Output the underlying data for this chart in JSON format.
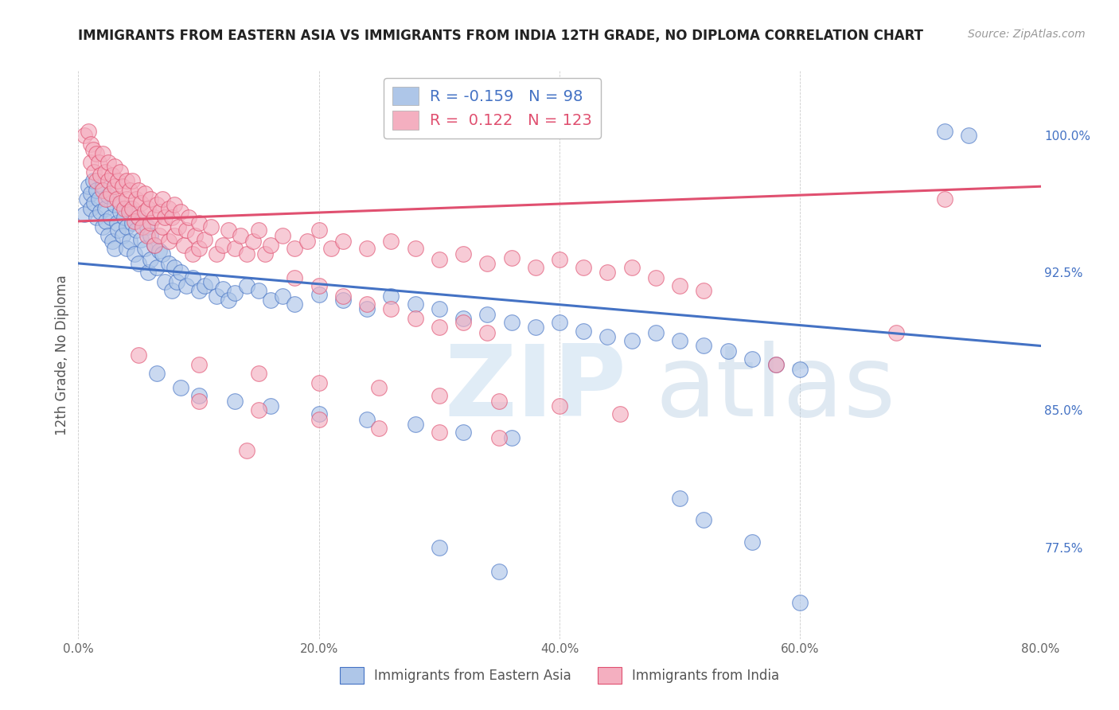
{
  "title": "IMMIGRANTS FROM EASTERN ASIA VS IMMIGRANTS FROM INDIA 12TH GRADE, NO DIPLOMA CORRELATION CHART",
  "source": "Source: ZipAtlas.com",
  "xlabel_ticks": [
    "0.0%",
    "20.0%",
    "40.0%",
    "60.0%",
    "80.0%"
  ],
  "xlabel_tick_vals": [
    0.0,
    0.2,
    0.4,
    0.6,
    0.8
  ],
  "ylabel_ticks": [
    "77.5%",
    "85.0%",
    "92.5%",
    "100.0%"
  ],
  "ylabel_tick_vals": [
    0.775,
    0.85,
    0.925,
    1.0
  ],
  "xlim": [
    0.0,
    0.8
  ],
  "ylim": [
    0.725,
    1.035
  ],
  "blue_R": -0.159,
  "blue_N": 98,
  "pink_R": 0.122,
  "pink_N": 123,
  "blue_color": "#aec6e8",
  "pink_color": "#f4afc0",
  "blue_line_color": "#4472c4",
  "pink_line_color": "#e05070",
  "ylabel": "12th Grade, No Diploma",
  "legend_label_blue": "Immigrants from Eastern Asia",
  "legend_label_pink": "Immigrants from India",
  "watermark_zip": "ZIP",
  "watermark_atlas": "atlas",
  "blue_scatter": [
    [
      0.005,
      0.957
    ],
    [
      0.007,
      0.965
    ],
    [
      0.008,
      0.972
    ],
    [
      0.01,
      0.968
    ],
    [
      0.01,
      0.96
    ],
    [
      0.012,
      0.975
    ],
    [
      0.013,
      0.963
    ],
    [
      0.015,
      0.97
    ],
    [
      0.015,
      0.955
    ],
    [
      0.017,
      0.965
    ],
    [
      0.018,
      0.958
    ],
    [
      0.02,
      0.972
    ],
    [
      0.02,
      0.95
    ],
    [
      0.022,
      0.96
    ],
    [
      0.023,
      0.953
    ],
    [
      0.025,
      0.967
    ],
    [
      0.025,
      0.945
    ],
    [
      0.027,
      0.955
    ],
    [
      0.028,
      0.942
    ],
    [
      0.03,
      0.962
    ],
    [
      0.03,
      0.938
    ],
    [
      0.032,
      0.952
    ],
    [
      0.033,
      0.948
    ],
    [
      0.035,
      0.958
    ],
    [
      0.037,
      0.945
    ],
    [
      0.038,
      0.955
    ],
    [
      0.04,
      0.95
    ],
    [
      0.04,
      0.938
    ],
    [
      0.042,
      0.96
    ],
    [
      0.043,
      0.942
    ],
    [
      0.045,
      0.952
    ],
    [
      0.047,
      0.935
    ],
    [
      0.048,
      0.948
    ],
    [
      0.05,
      0.955
    ],
    [
      0.05,
      0.93
    ],
    [
      0.052,
      0.943
    ],
    [
      0.055,
      0.938
    ],
    [
      0.057,
      0.95
    ],
    [
      0.058,
      0.925
    ],
    [
      0.06,
      0.945
    ],
    [
      0.06,
      0.932
    ],
    [
      0.063,
      0.94
    ],
    [
      0.065,
      0.928
    ],
    [
      0.067,
      0.937
    ],
    [
      0.07,
      0.935
    ],
    [
      0.072,
      0.92
    ],
    [
      0.075,
      0.93
    ],
    [
      0.078,
      0.915
    ],
    [
      0.08,
      0.928
    ],
    [
      0.082,
      0.92
    ],
    [
      0.085,
      0.925
    ],
    [
      0.09,
      0.918
    ],
    [
      0.095,
      0.922
    ],
    [
      0.1,
      0.915
    ],
    [
      0.105,
      0.918
    ],
    [
      0.11,
      0.92
    ],
    [
      0.115,
      0.912
    ],
    [
      0.12,
      0.916
    ],
    [
      0.125,
      0.91
    ],
    [
      0.13,
      0.914
    ],
    [
      0.14,
      0.918
    ],
    [
      0.15,
      0.915
    ],
    [
      0.16,
      0.91
    ],
    [
      0.17,
      0.912
    ],
    [
      0.18,
      0.908
    ],
    [
      0.2,
      0.913
    ],
    [
      0.22,
      0.91
    ],
    [
      0.24,
      0.905
    ],
    [
      0.26,
      0.912
    ],
    [
      0.28,
      0.908
    ],
    [
      0.3,
      0.905
    ],
    [
      0.32,
      0.9
    ],
    [
      0.34,
      0.902
    ],
    [
      0.36,
      0.898
    ],
    [
      0.38,
      0.895
    ],
    [
      0.4,
      0.898
    ],
    [
      0.42,
      0.893
    ],
    [
      0.44,
      0.89
    ],
    [
      0.46,
      0.888
    ],
    [
      0.48,
      0.892
    ],
    [
      0.5,
      0.888
    ],
    [
      0.52,
      0.885
    ],
    [
      0.54,
      0.882
    ],
    [
      0.56,
      0.878
    ],
    [
      0.58,
      0.875
    ],
    [
      0.6,
      0.872
    ],
    [
      0.065,
      0.87
    ],
    [
      0.085,
      0.862
    ],
    [
      0.1,
      0.858
    ],
    [
      0.13,
      0.855
    ],
    [
      0.16,
      0.852
    ],
    [
      0.2,
      0.848
    ],
    [
      0.24,
      0.845
    ],
    [
      0.28,
      0.842
    ],
    [
      0.32,
      0.838
    ],
    [
      0.36,
      0.835
    ],
    [
      0.72,
      1.002
    ],
    [
      0.74,
      1.0
    ],
    [
      0.5,
      0.802
    ],
    [
      0.52,
      0.79
    ],
    [
      0.56,
      0.778
    ],
    [
      0.3,
      0.775
    ],
    [
      0.35,
      0.762
    ],
    [
      0.6,
      0.745
    ]
  ],
  "pink_scatter": [
    [
      0.005,
      1.0
    ],
    [
      0.008,
      1.002
    ],
    [
      0.01,
      0.995
    ],
    [
      0.01,
      0.985
    ],
    [
      0.012,
      0.992
    ],
    [
      0.013,
      0.98
    ],
    [
      0.015,
      0.99
    ],
    [
      0.015,
      0.975
    ],
    [
      0.017,
      0.985
    ],
    [
      0.018,
      0.978
    ],
    [
      0.02,
      0.99
    ],
    [
      0.02,
      0.97
    ],
    [
      0.022,
      0.98
    ],
    [
      0.023,
      0.965
    ],
    [
      0.025,
      0.985
    ],
    [
      0.025,
      0.975
    ],
    [
      0.027,
      0.968
    ],
    [
      0.028,
      0.978
    ],
    [
      0.03,
      0.983
    ],
    [
      0.03,
      0.972
    ],
    [
      0.032,
      0.965
    ],
    [
      0.033,
      0.975
    ],
    [
      0.035,
      0.98
    ],
    [
      0.035,
      0.963
    ],
    [
      0.037,
      0.972
    ],
    [
      0.038,
      0.96
    ],
    [
      0.04,
      0.975
    ],
    [
      0.04,
      0.965
    ],
    [
      0.042,
      0.958
    ],
    [
      0.043,
      0.97
    ],
    [
      0.045,
      0.975
    ],
    [
      0.045,
      0.96
    ],
    [
      0.047,
      0.953
    ],
    [
      0.048,
      0.965
    ],
    [
      0.05,
      0.97
    ],
    [
      0.05,
      0.955
    ],
    [
      0.052,
      0.963
    ],
    [
      0.053,
      0.95
    ],
    [
      0.055,
      0.968
    ],
    [
      0.055,
      0.958
    ],
    [
      0.057,
      0.945
    ],
    [
      0.058,
      0.96
    ],
    [
      0.06,
      0.965
    ],
    [
      0.06,
      0.952
    ],
    [
      0.063,
      0.955
    ],
    [
      0.063,
      0.94
    ],
    [
      0.065,
      0.962
    ],
    [
      0.067,
      0.945
    ],
    [
      0.068,
      0.958
    ],
    [
      0.07,
      0.965
    ],
    [
      0.07,
      0.95
    ],
    [
      0.072,
      0.955
    ],
    [
      0.075,
      0.96
    ],
    [
      0.075,
      0.942
    ],
    [
      0.078,
      0.955
    ],
    [
      0.08,
      0.962
    ],
    [
      0.08,
      0.945
    ],
    [
      0.083,
      0.95
    ],
    [
      0.085,
      0.958
    ],
    [
      0.088,
      0.94
    ],
    [
      0.09,
      0.948
    ],
    [
      0.092,
      0.955
    ],
    [
      0.095,
      0.935
    ],
    [
      0.097,
      0.945
    ],
    [
      0.1,
      0.952
    ],
    [
      0.1,
      0.938
    ],
    [
      0.105,
      0.943
    ],
    [
      0.11,
      0.95
    ],
    [
      0.115,
      0.935
    ],
    [
      0.12,
      0.94
    ],
    [
      0.125,
      0.948
    ],
    [
      0.13,
      0.938
    ],
    [
      0.135,
      0.945
    ],
    [
      0.14,
      0.935
    ],
    [
      0.145,
      0.942
    ],
    [
      0.15,
      0.948
    ],
    [
      0.155,
      0.935
    ],
    [
      0.16,
      0.94
    ],
    [
      0.17,
      0.945
    ],
    [
      0.18,
      0.938
    ],
    [
      0.19,
      0.942
    ],
    [
      0.2,
      0.948
    ],
    [
      0.21,
      0.938
    ],
    [
      0.22,
      0.942
    ],
    [
      0.24,
      0.938
    ],
    [
      0.26,
      0.942
    ],
    [
      0.28,
      0.938
    ],
    [
      0.3,
      0.932
    ],
    [
      0.32,
      0.935
    ],
    [
      0.34,
      0.93
    ],
    [
      0.36,
      0.933
    ],
    [
      0.38,
      0.928
    ],
    [
      0.4,
      0.932
    ],
    [
      0.42,
      0.928
    ],
    [
      0.44,
      0.925
    ],
    [
      0.46,
      0.928
    ],
    [
      0.48,
      0.922
    ],
    [
      0.5,
      0.918
    ],
    [
      0.52,
      0.915
    ],
    [
      0.18,
      0.922
    ],
    [
      0.2,
      0.918
    ],
    [
      0.22,
      0.912
    ],
    [
      0.24,
      0.908
    ],
    [
      0.26,
      0.905
    ],
    [
      0.28,
      0.9
    ],
    [
      0.3,
      0.895
    ],
    [
      0.32,
      0.898
    ],
    [
      0.34,
      0.892
    ],
    [
      0.05,
      0.88
    ],
    [
      0.1,
      0.875
    ],
    [
      0.15,
      0.87
    ],
    [
      0.2,
      0.865
    ],
    [
      0.25,
      0.862
    ],
    [
      0.3,
      0.858
    ],
    [
      0.35,
      0.855
    ],
    [
      0.4,
      0.852
    ],
    [
      0.45,
      0.848
    ],
    [
      0.1,
      0.855
    ],
    [
      0.15,
      0.85
    ],
    [
      0.2,
      0.845
    ],
    [
      0.25,
      0.84
    ],
    [
      0.3,
      0.838
    ],
    [
      0.35,
      0.835
    ],
    [
      0.14,
      0.828
    ],
    [
      0.58,
      0.875
    ],
    [
      0.72,
      0.965
    ],
    [
      0.68,
      0.892
    ]
  ]
}
